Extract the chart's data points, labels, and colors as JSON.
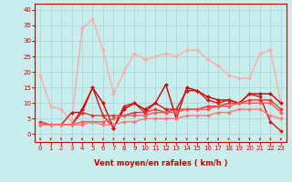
{
  "xlabel": "Vent moyen/en rafales ( km/h )",
  "background_color": "#c8eded",
  "grid_color": "#a8d4d4",
  "xlim": [
    -0.5,
    23.5
  ],
  "ylim": [
    -2.5,
    42
  ],
  "x_ticks": [
    0,
    1,
    2,
    3,
    4,
    5,
    6,
    7,
    8,
    9,
    10,
    11,
    12,
    13,
    14,
    15,
    16,
    17,
    18,
    19,
    20,
    21,
    22,
    23
  ],
  "y_ticks": [
    0,
    5,
    10,
    15,
    20,
    25,
    30,
    35,
    40
  ],
  "lines": [
    {
      "x": [
        0,
        1,
        2,
        3,
        4,
        5,
        6,
        7,
        8,
        9,
        10,
        11,
        12,
        13,
        14,
        15,
        16,
        17,
        18,
        19,
        20,
        21,
        22,
        23
      ],
      "y": [
        19,
        9,
        8,
        4,
        34,
        37,
        27,
        13,
        20,
        26,
        24,
        25,
        26,
        25,
        27,
        27,
        24,
        22,
        19,
        18,
        18,
        26,
        27,
        10
      ],
      "color": "#ffaaaa",
      "lw": 1.0,
      "marker": "D",
      "ms": 2.0
    },
    {
      "x": [
        0,
        1,
        2,
        3,
        4,
        5,
        6,
        7,
        8,
        9,
        10,
        11,
        12,
        13,
        14,
        15,
        16,
        17,
        18,
        19,
        20,
        21,
        22,
        23
      ],
      "y": [
        3,
        3,
        3,
        3,
        8,
        15,
        10,
        2,
        8,
        10,
        8,
        10,
        16,
        5,
        15,
        14,
        12,
        11,
        11,
        10,
        13,
        13,
        13,
        10
      ],
      "color": "#cc0000",
      "lw": 1.0,
      "marker": "D",
      "ms": 2.0
    },
    {
      "x": [
        0,
        1,
        2,
        3,
        4,
        5,
        6,
        7,
        8,
        9,
        10,
        11,
        12,
        13,
        14,
        15,
        16,
        17,
        18,
        19,
        20,
        21,
        22,
        23
      ],
      "y": [
        3,
        3,
        3,
        7,
        7,
        15,
        6,
        2,
        9,
        10,
        7,
        10,
        8,
        8,
        14,
        14,
        11,
        10,
        11,
        10,
        13,
        12,
        4,
        1
      ],
      "color": "#dd1111",
      "lw": 1.0,
      "marker": "D",
      "ms": 2.0
    },
    {
      "x": [
        0,
        1,
        2,
        3,
        4,
        5,
        6,
        7,
        8,
        9,
        10,
        11,
        12,
        13,
        14,
        15,
        16,
        17,
        18,
        19,
        20,
        21,
        22,
        23
      ],
      "y": [
        4,
        3,
        3,
        3,
        7,
        6,
        6,
        6,
        6,
        7,
        7,
        8,
        7,
        8,
        8,
        8,
        9,
        9,
        10,
        10,
        11,
        11,
        11,
        8
      ],
      "color": "#ee3333",
      "lw": 1.0,
      "marker": "D",
      "ms": 2.0
    },
    {
      "x": [
        0,
        1,
        2,
        3,
        4,
        5,
        6,
        7,
        8,
        9,
        10,
        11,
        12,
        13,
        14,
        15,
        16,
        17,
        18,
        19,
        20,
        21,
        22,
        23
      ],
      "y": [
        3,
        3,
        3,
        3,
        4,
        4,
        4,
        5,
        6,
        6,
        6,
        7,
        7,
        7,
        8,
        8,
        8,
        9,
        9,
        10,
        10,
        10,
        10,
        7
      ],
      "color": "#ff5555",
      "lw": 1.0,
      "marker": "D",
      "ms": 2.0
    },
    {
      "x": [
        0,
        1,
        2,
        3,
        4,
        5,
        6,
        7,
        8,
        9,
        10,
        11,
        12,
        13,
        14,
        15,
        16,
        17,
        18,
        19,
        20,
        21,
        22,
        23
      ],
      "y": [
        3,
        3,
        3,
        3,
        3,
        4,
        3,
        3,
        4,
        4,
        5,
        5,
        5,
        5,
        6,
        6,
        6,
        7,
        7,
        8,
        8,
        8,
        6,
        5
      ],
      "color": "#ff7777",
      "lw": 1.0,
      "marker": "D",
      "ms": 2.0
    }
  ],
  "tick_color": "#cc0000",
  "tick_fontsize": 5,
  "xlabel_fontsize": 6,
  "xlabel_color": "#cc0000",
  "xlabel_fontweight": "bold",
  "arrow_color": "#cc0000",
  "spine_color": "#cc0000"
}
